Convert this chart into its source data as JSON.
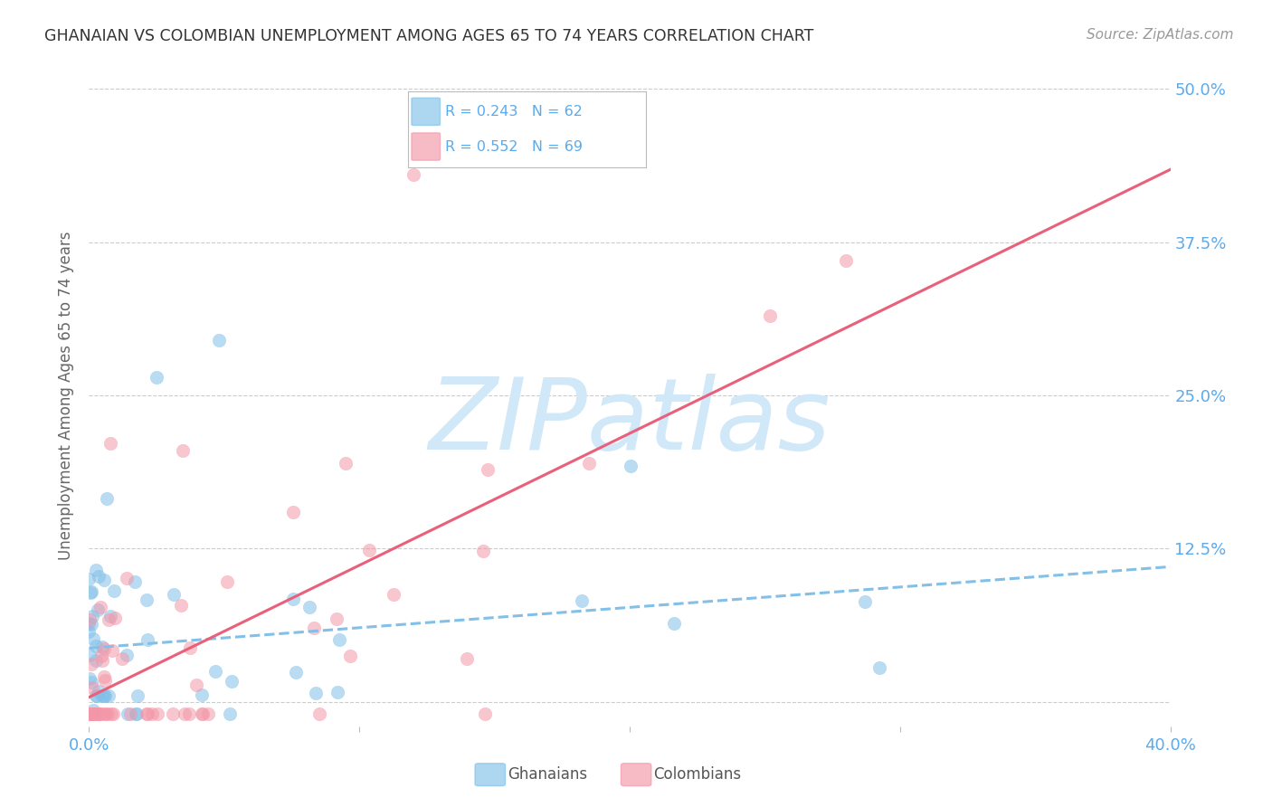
{
  "title": "GHANAIAN VS COLOMBIAN UNEMPLOYMENT AMONG AGES 65 TO 74 YEARS CORRELATION CHART",
  "source": "Source: ZipAtlas.com",
  "ylabel": "Unemployment Among Ages 65 to 74 years",
  "xlim": [
    0.0,
    0.4
  ],
  "ylim": [
    -0.02,
    0.52
  ],
  "color_ghanaian": "#82c0e8",
  "color_colombian": "#f497a8",
  "color_line_ghanaian": "#82c0e8",
  "color_line_colombian": "#e8607a",
  "color_axis_labels": "#5aaaee",
  "color_title": "#333333",
  "watermark_color": "#d0e8f8",
  "background_color": "#ffffff",
  "grid_color": "#cccccc"
}
